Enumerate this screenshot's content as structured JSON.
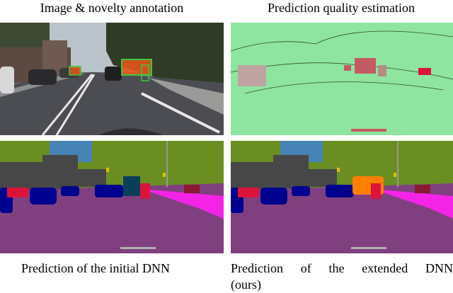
{
  "titles": {
    "top_left": "Image & novelty annotation",
    "top_right": "Prediction quality estimation"
  },
  "captions": {
    "bottom_left": "Prediction of the initial DNN",
    "bottom_right_line1": "Prediction of the extended DNN",
    "bottom_right_line2": "(ours)"
  },
  "colors": {
    "road": "#80407f",
    "sidewalk": "#f424e6",
    "building": "#474747",
    "vegetation": "#6b8e23",
    "sky": "#4682b4",
    "car": "#00008e",
    "person": "#dc143c",
    "novelty": "#ff7f00",
    "quality_good": "#8ee5a0",
    "quality_bad": "#dc143c"
  }
}
